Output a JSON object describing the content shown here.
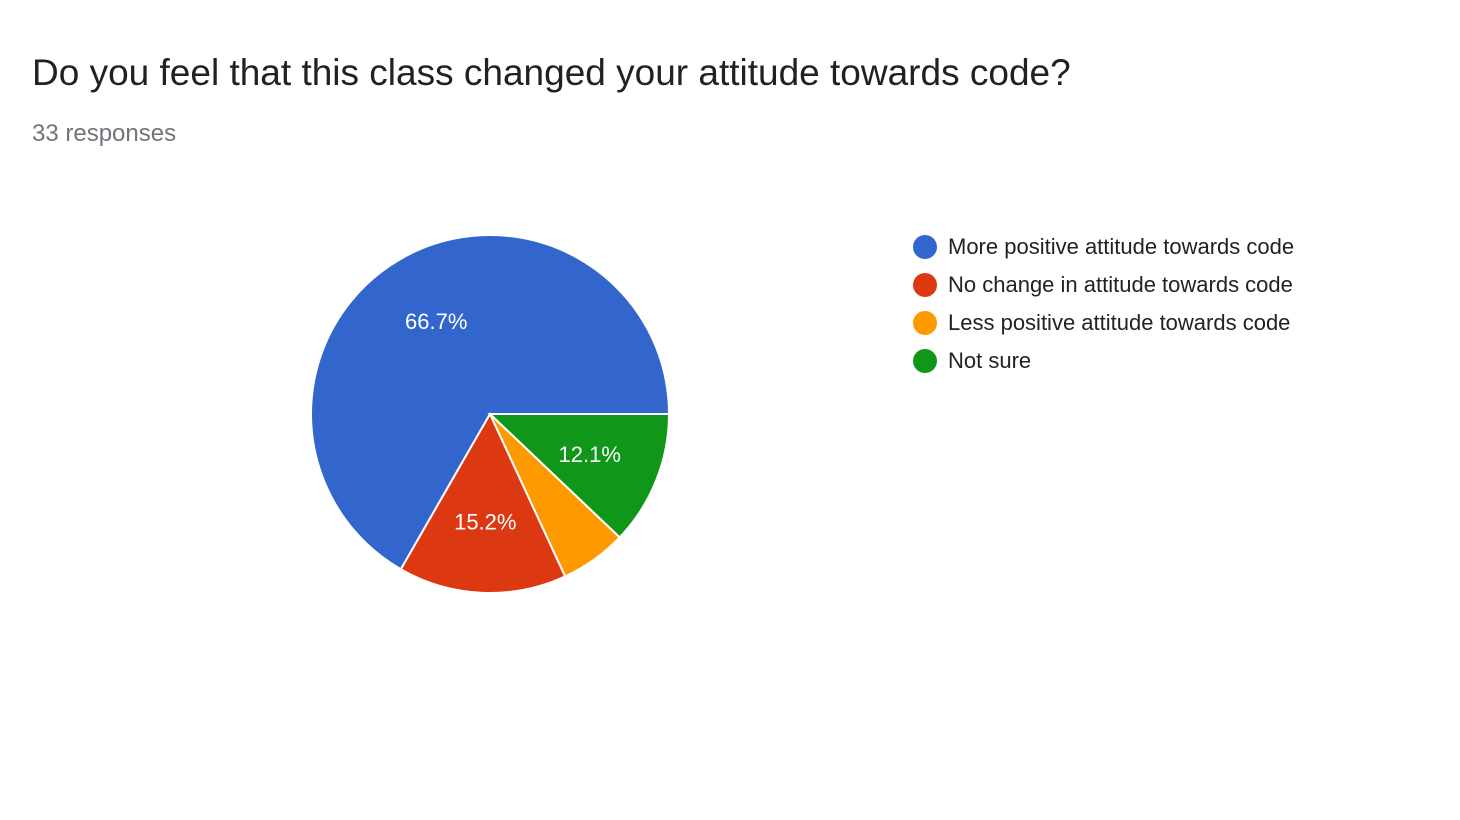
{
  "header": {
    "title": "Do you feel that this class changed your attitude towards code?",
    "subtitle": "33 responses"
  },
  "chart_data": {
    "type": "pie",
    "title": "Do you feel that this class changed your attitude towards code?",
    "total_responses": 33,
    "slices": [
      {
        "label": "More positive attitude towards code",
        "value": 66.7,
        "display": "66.7%",
        "color": "#3366cc"
      },
      {
        "label": "No change in attitude towards code",
        "value": 15.2,
        "display": "15.2%",
        "color": "#dc3912"
      },
      {
        "label": "Less positive attitude towards code",
        "value": 6.0,
        "display": "",
        "color": "#ff9900"
      },
      {
        "label": "Not sure",
        "value": 12.1,
        "display": "12.1%",
        "color": "#109618"
      }
    ],
    "legend_position": "right"
  }
}
